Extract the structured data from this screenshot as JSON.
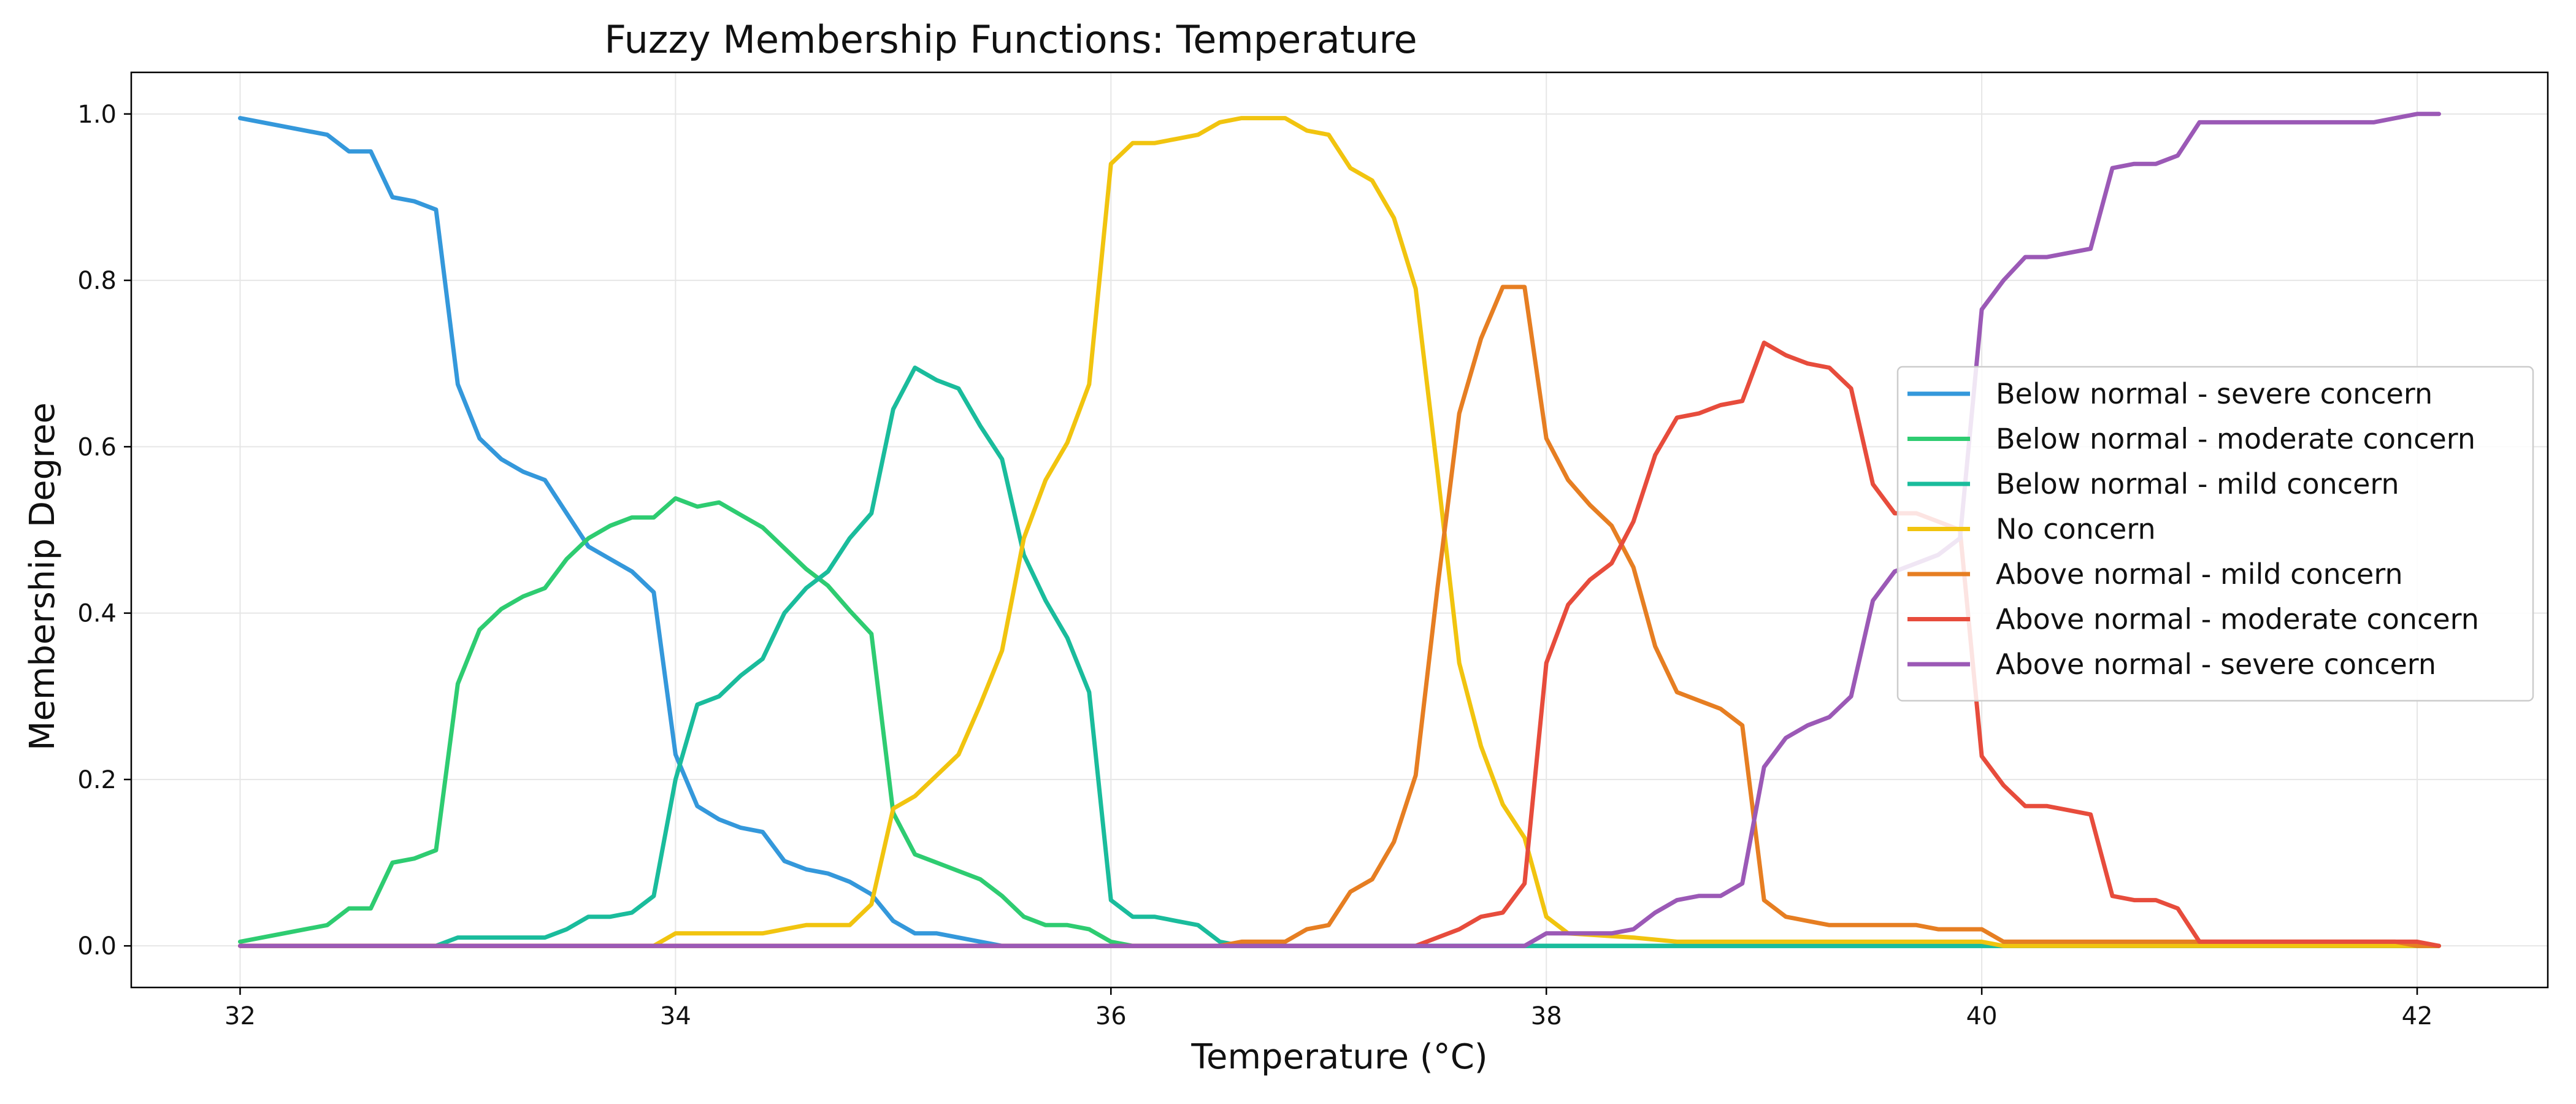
{
  "chart_data": {
    "type": "line",
    "title": "Fuzzy Membership Functions: Temperature",
    "xlabel": "Temperature (°C)",
    "ylabel": "Membership Degree",
    "xlim": [
      31.5,
      42.6
    ],
    "ylim": [
      -0.05,
      1.05
    ],
    "xticks": [
      32,
      34,
      36,
      38,
      40,
      42
    ],
    "yticks": [
      0.0,
      0.2,
      0.4,
      0.6,
      0.8,
      1.0
    ],
    "xtick_labels": [
      "32",
      "34",
      "36",
      "38",
      "40",
      "42"
    ],
    "ytick_labels": [
      "0.0",
      "0.2",
      "0.4",
      "0.6",
      "0.8",
      "1.0"
    ],
    "grid": true,
    "legend_position": "center-right",
    "series": [
      {
        "name": "Below normal - severe concern",
        "color": "#3498db",
        "points": [
          [
            32.0,
            0.995
          ],
          [
            32.4,
            0.975
          ],
          [
            32.5,
            0.955
          ],
          [
            32.6,
            0.955
          ],
          [
            32.7,
            0.9
          ],
          [
            32.8,
            0.895
          ],
          [
            32.9,
            0.885
          ],
          [
            33.0,
            0.675
          ],
          [
            33.1,
            0.61
          ],
          [
            33.2,
            0.585
          ],
          [
            33.3,
            0.57
          ],
          [
            33.4,
            0.56
          ],
          [
            33.5,
            0.52
          ],
          [
            33.6,
            0.48
          ],
          [
            33.7,
            0.465
          ],
          [
            33.8,
            0.45
          ],
          [
            33.9,
            0.425
          ],
          [
            34.0,
            0.23
          ],
          [
            34.1,
            0.168
          ],
          [
            34.2,
            0.152
          ],
          [
            34.3,
            0.142
          ],
          [
            34.4,
            0.137
          ],
          [
            34.5,
            0.102
          ],
          [
            34.6,
            0.092
          ],
          [
            34.7,
            0.087
          ],
          [
            34.8,
            0.077
          ],
          [
            34.9,
            0.062
          ],
          [
            35.0,
            0.03
          ],
          [
            35.1,
            0.015
          ],
          [
            35.2,
            0.015
          ],
          [
            35.5,
            0.0
          ],
          [
            42.1,
            0.0
          ]
        ]
      },
      {
        "name": "Below normal - moderate concern",
        "color": "#2ecc71",
        "points": [
          [
            32.0,
            0.005
          ],
          [
            32.4,
            0.025
          ],
          [
            32.5,
            0.045
          ],
          [
            32.6,
            0.045
          ],
          [
            32.7,
            0.1
          ],
          [
            32.8,
            0.105
          ],
          [
            32.9,
            0.115
          ],
          [
            33.0,
            0.315
          ],
          [
            33.1,
            0.38
          ],
          [
            33.2,
            0.405
          ],
          [
            33.3,
            0.42
          ],
          [
            33.4,
            0.43
          ],
          [
            33.5,
            0.465
          ],
          [
            33.6,
            0.49
          ],
          [
            33.7,
            0.505
          ],
          [
            33.8,
            0.515
          ],
          [
            33.9,
            0.515
          ],
          [
            34.0,
            0.538
          ],
          [
            34.1,
            0.528
          ],
          [
            34.2,
            0.533
          ],
          [
            34.3,
            0.518
          ],
          [
            34.4,
            0.503
          ],
          [
            34.5,
            0.478
          ],
          [
            34.6,
            0.453
          ],
          [
            34.7,
            0.433
          ],
          [
            34.8,
            0.403
          ],
          [
            34.9,
            0.375
          ],
          [
            35.0,
            0.16
          ],
          [
            35.1,
            0.11
          ],
          [
            35.2,
            0.1
          ],
          [
            35.3,
            0.09
          ],
          [
            35.4,
            0.08
          ],
          [
            35.5,
            0.06
          ],
          [
            35.6,
            0.035
          ],
          [
            35.7,
            0.025
          ],
          [
            35.8,
            0.025
          ],
          [
            35.9,
            0.02
          ],
          [
            36.0,
            0.005
          ],
          [
            36.1,
            0.0
          ],
          [
            42.1,
            0.0
          ]
        ]
      },
      {
        "name": "Below normal - mild concern",
        "color": "#1abc9c",
        "points": [
          [
            32.0,
            0.0
          ],
          [
            32.9,
            0.0
          ],
          [
            33.0,
            0.01
          ],
          [
            33.4,
            0.01
          ],
          [
            33.5,
            0.02
          ],
          [
            33.6,
            0.035
          ],
          [
            33.7,
            0.035
          ],
          [
            33.8,
            0.04
          ],
          [
            33.9,
            0.06
          ],
          [
            34.0,
            0.2
          ],
          [
            34.1,
            0.29
          ],
          [
            34.2,
            0.3
          ],
          [
            34.3,
            0.325
          ],
          [
            34.4,
            0.345
          ],
          [
            34.5,
            0.4
          ],
          [
            34.6,
            0.43
          ],
          [
            34.7,
            0.45
          ],
          [
            34.8,
            0.49
          ],
          [
            34.9,
            0.52
          ],
          [
            35.0,
            0.645
          ],
          [
            35.1,
            0.695
          ],
          [
            35.2,
            0.68
          ],
          [
            35.3,
            0.67
          ],
          [
            35.4,
            0.625
          ],
          [
            35.5,
            0.585
          ],
          [
            35.6,
            0.47
          ],
          [
            35.7,
            0.415
          ],
          [
            35.8,
            0.37
          ],
          [
            35.9,
            0.305
          ],
          [
            36.0,
            0.055
          ],
          [
            36.1,
            0.035
          ],
          [
            36.2,
            0.035
          ],
          [
            36.3,
            0.03
          ],
          [
            36.4,
            0.025
          ],
          [
            36.5,
            0.005
          ],
          [
            36.6,
            0.0
          ],
          [
            42.1,
            0.0
          ]
        ]
      },
      {
        "name": "No concern",
        "color": "#f1c40f",
        "points": [
          [
            32.0,
            0.0
          ],
          [
            33.9,
            0.0
          ],
          [
            34.0,
            0.015
          ],
          [
            34.4,
            0.015
          ],
          [
            34.6,
            0.025
          ],
          [
            34.8,
            0.025
          ],
          [
            34.9,
            0.05
          ],
          [
            35.0,
            0.165
          ],
          [
            35.1,
            0.18
          ],
          [
            35.2,
            0.205
          ],
          [
            35.3,
            0.23
          ],
          [
            35.4,
            0.29
          ],
          [
            35.5,
            0.355
          ],
          [
            35.6,
            0.49
          ],
          [
            35.7,
            0.56
          ],
          [
            35.8,
            0.605
          ],
          [
            35.9,
            0.675
          ],
          [
            36.0,
            0.94
          ],
          [
            36.1,
            0.965
          ],
          [
            36.2,
            0.965
          ],
          [
            36.3,
            0.97
          ],
          [
            36.4,
            0.975
          ],
          [
            36.5,
            0.99
          ],
          [
            36.6,
            0.995
          ],
          [
            36.8,
            0.995
          ],
          [
            36.9,
            0.98
          ],
          [
            37.0,
            0.975
          ],
          [
            37.1,
            0.935
          ],
          [
            37.2,
            0.92
          ],
          [
            37.3,
            0.875
          ],
          [
            37.4,
            0.79
          ],
          [
            37.5,
            0.57
          ],
          [
            37.6,
            0.34
          ],
          [
            37.7,
            0.24
          ],
          [
            37.8,
            0.17
          ],
          [
            37.9,
            0.13
          ],
          [
            38.0,
            0.035
          ],
          [
            38.1,
            0.015
          ],
          [
            38.4,
            0.01
          ],
          [
            38.6,
            0.005
          ],
          [
            40.0,
            0.005
          ],
          [
            40.1,
            0.0
          ],
          [
            42.1,
            0.0
          ]
        ]
      },
      {
        "name": "Above normal - mild concern",
        "color": "#e67e22",
        "points": [
          [
            32.0,
            0.0
          ],
          [
            36.5,
            0.0
          ],
          [
            36.6,
            0.005
          ],
          [
            36.8,
            0.005
          ],
          [
            36.9,
            0.02
          ],
          [
            37.0,
            0.025
          ],
          [
            37.1,
            0.065
          ],
          [
            37.2,
            0.08
          ],
          [
            37.3,
            0.125
          ],
          [
            37.4,
            0.205
          ],
          [
            37.5,
            0.43
          ],
          [
            37.6,
            0.64
          ],
          [
            37.7,
            0.73
          ],
          [
            37.8,
            0.792
          ],
          [
            37.9,
            0.792
          ],
          [
            38.0,
            0.61
          ],
          [
            38.1,
            0.56
          ],
          [
            38.2,
            0.53
          ],
          [
            38.3,
            0.505
          ],
          [
            38.4,
            0.455
          ],
          [
            38.5,
            0.36
          ],
          [
            38.6,
            0.305
          ],
          [
            38.7,
            0.295
          ],
          [
            38.8,
            0.285
          ],
          [
            38.9,
            0.265
          ],
          [
            39.0,
            0.055
          ],
          [
            39.1,
            0.035
          ],
          [
            39.2,
            0.03
          ],
          [
            39.3,
            0.025
          ],
          [
            39.7,
            0.025
          ],
          [
            39.8,
            0.02
          ],
          [
            40.0,
            0.02
          ],
          [
            40.1,
            0.005
          ],
          [
            41.9,
            0.005
          ],
          [
            42.0,
            0.0
          ],
          [
            42.1,
            0.0
          ]
        ]
      },
      {
        "name": "Above normal - moderate concern",
        "color": "#e74c3c",
        "points": [
          [
            32.0,
            0.0
          ],
          [
            37.4,
            0.0
          ],
          [
            37.5,
            0.01
          ],
          [
            37.6,
            0.02
          ],
          [
            37.7,
            0.035
          ],
          [
            37.8,
            0.04
          ],
          [
            37.9,
            0.075
          ],
          [
            38.0,
            0.34
          ],
          [
            38.1,
            0.41
          ],
          [
            38.2,
            0.44
          ],
          [
            38.3,
            0.46
          ],
          [
            38.4,
            0.51
          ],
          [
            38.5,
            0.59
          ],
          [
            38.6,
            0.635
          ],
          [
            38.7,
            0.64
          ],
          [
            38.8,
            0.65
          ],
          [
            38.9,
            0.655
          ],
          [
            39.0,
            0.725
          ],
          [
            39.1,
            0.71
          ],
          [
            39.2,
            0.7
          ],
          [
            39.3,
            0.695
          ],
          [
            39.4,
            0.67
          ],
          [
            39.5,
            0.555
          ],
          [
            39.6,
            0.52
          ],
          [
            39.7,
            0.52
          ],
          [
            39.8,
            0.51
          ],
          [
            39.9,
            0.5
          ],
          [
            40.0,
            0.228
          ],
          [
            40.1,
            0.193
          ],
          [
            40.2,
            0.168
          ],
          [
            40.3,
            0.168
          ],
          [
            40.4,
            0.163
          ],
          [
            40.5,
            0.158
          ],
          [
            40.6,
            0.06
          ],
          [
            40.7,
            0.055
          ],
          [
            40.8,
            0.055
          ],
          [
            40.9,
            0.045
          ],
          [
            41.0,
            0.005
          ],
          [
            42.0,
            0.005
          ],
          [
            42.1,
            0.0
          ]
        ]
      },
      {
        "name": "Above normal - severe concern",
        "color": "#9b59b6",
        "points": [
          [
            32.0,
            0.0
          ],
          [
            37.9,
            0.0
          ],
          [
            38.0,
            0.015
          ],
          [
            38.3,
            0.015
          ],
          [
            38.4,
            0.02
          ],
          [
            38.5,
            0.04
          ],
          [
            38.6,
            0.055
          ],
          [
            38.7,
            0.06
          ],
          [
            38.8,
            0.06
          ],
          [
            38.9,
            0.075
          ],
          [
            39.0,
            0.215
          ],
          [
            39.1,
            0.25
          ],
          [
            39.2,
            0.265
          ],
          [
            39.3,
            0.275
          ],
          [
            39.4,
            0.3
          ],
          [
            39.5,
            0.415
          ],
          [
            39.6,
            0.45
          ],
          [
            39.7,
            0.46
          ],
          [
            39.8,
            0.47
          ],
          [
            39.9,
            0.49
          ],
          [
            40.0,
            0.765
          ],
          [
            40.1,
            0.8
          ],
          [
            40.2,
            0.828
          ],
          [
            40.3,
            0.828
          ],
          [
            40.4,
            0.833
          ],
          [
            40.5,
            0.838
          ],
          [
            40.6,
            0.935
          ],
          [
            40.7,
            0.94
          ],
          [
            40.8,
            0.94
          ],
          [
            40.9,
            0.95
          ],
          [
            41.0,
            0.99
          ],
          [
            41.8,
            0.99
          ],
          [
            41.9,
            0.995
          ],
          [
            42.0,
            1.0
          ],
          [
            42.1,
            1.0
          ]
        ]
      }
    ]
  }
}
